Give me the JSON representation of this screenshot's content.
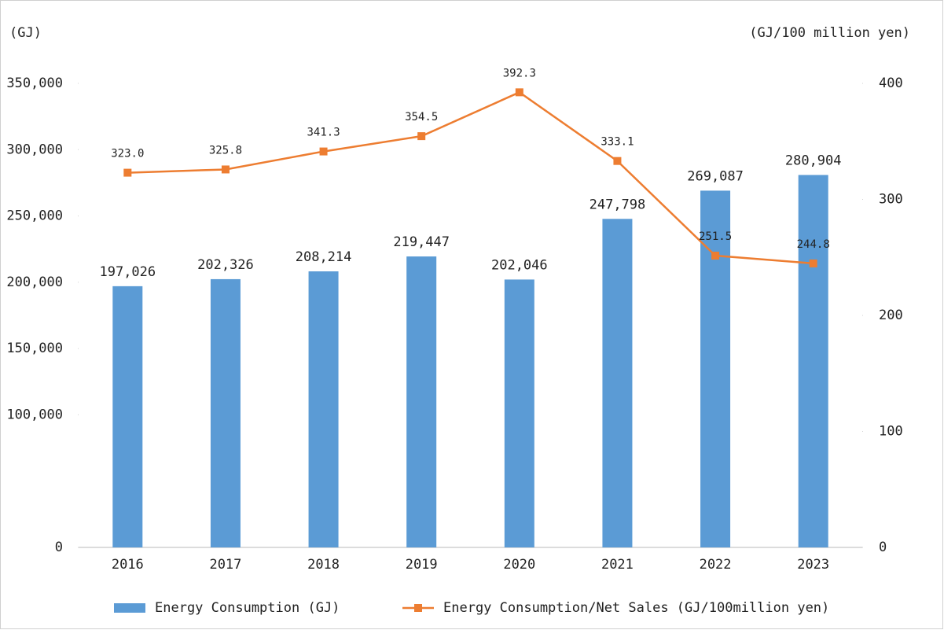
{
  "chart_data": {
    "type": "bar",
    "y_label": "(GJ)",
    "y2_label": "(GJ/100 million yen)",
    "categories": [
      "2016",
      "2017",
      "2018",
      "2019",
      "2020",
      "2021",
      "2022",
      "2023"
    ],
    "series": [
      {
        "name": "Energy Consumption (GJ)",
        "type": "bar",
        "color": "#5b9bd5",
        "values": [
          197026,
          202326,
          208214,
          219447,
          202046,
          247798,
          269087,
          280904
        ],
        "value_labels": [
          "197,026",
          "202,326",
          "208,214",
          "219,447",
          "202,046",
          "247,798",
          "269,087",
          "280,904"
        ]
      },
      {
        "name": "Energy Consumption/Net Sales (GJ/100million yen)",
        "type": "line",
        "axis": "y2",
        "color": "#ed7d31",
        "values": [
          323.0,
          325.8,
          341.3,
          354.5,
          392.3,
          333.1,
          251.5,
          244.8
        ],
        "value_labels": [
          "323.0",
          "325.8",
          "341.3",
          "354.5",
          "392.3",
          "333.1",
          "251.5",
          "244.8"
        ]
      }
    ],
    "ylim": [
      0,
      350000
    ],
    "yticks": [
      0,
      {
        "value": 100000,
        "label": "100,000"
      },
      {
        "value": 150000,
        "label": "150,000"
      },
      {
        "value": 200000,
        "label": "200,000"
      },
      {
        "value": 250000,
        "label": "250,000"
      },
      {
        "value": 300000,
        "label": "300,000"
      },
      {
        "value": 350000,
        "label": "350,000"
      }
    ],
    "y2lim": [
      0,
      400
    ],
    "y2ticks": [
      0,
      100,
      200,
      300,
      400
    ],
    "grid": false,
    "legend": "bottom"
  }
}
